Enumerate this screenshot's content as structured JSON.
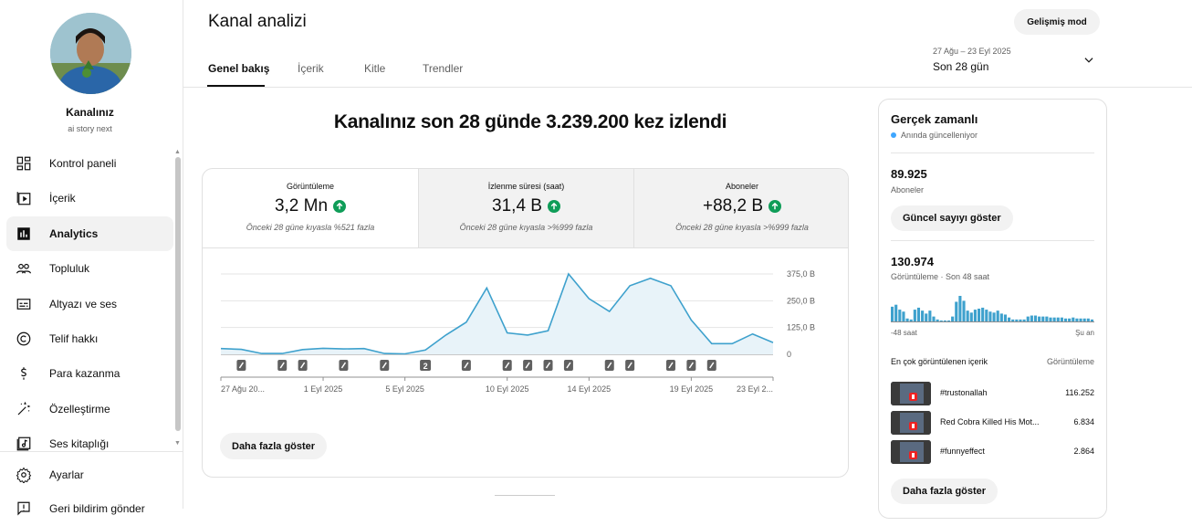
{
  "channel": {
    "name": "Kanalınız",
    "handle": "ai story next"
  },
  "sidebar": {
    "items": [
      {
        "label": "Kontrol paneli",
        "icon": "dashboard-icon"
      },
      {
        "label": "İçerik",
        "icon": "content-icon"
      },
      {
        "label": "Analytics",
        "icon": "analytics-icon",
        "active": true
      },
      {
        "label": "Topluluk",
        "icon": "community-icon"
      },
      {
        "label": "Altyazı ve ses",
        "icon": "subtitles-icon"
      },
      {
        "label": "Telif hakkı",
        "icon": "copyright-icon"
      },
      {
        "label": "Para kazanma",
        "icon": "monetization-icon"
      },
      {
        "label": "Özelleştirme",
        "icon": "customization-icon"
      },
      {
        "label": "Ses kitaplığı",
        "icon": "audio-library-icon"
      }
    ],
    "settings": "Ayarlar",
    "feedback": "Geri bildirim gönder"
  },
  "header": {
    "title": "Kanal analizi",
    "advanced_mode": "Gelişmiş mod",
    "tabs": [
      "Genel bakış",
      "İçerik",
      "Kitle",
      "Trendler"
    ],
    "date_range_sub": "27 Ağu – 23 Eyl 2025",
    "date_range": "Son 28 gün"
  },
  "main": {
    "headline": "Kanalınız son 28 günde 3.239.200 kez izlendi",
    "metrics": [
      {
        "label": "Görüntüleme",
        "value": "3,2 Mn",
        "compare": "Önceki 28 güne kıyasla %521 fazla"
      },
      {
        "label": "İzlenme süresi (saat)",
        "value": "31,4 B",
        "compare": "Önceki 28 güne kıyasla >%999 fazla"
      },
      {
        "label": "Aboneler",
        "value": "+88,2 B",
        "compare": "Önceki 28 güne kıyasla >%999 fazla"
      }
    ],
    "show_more": "Daha fazla göster"
  },
  "chart_data": {
    "type": "area",
    "x": [
      "27 Ağu",
      "28 Ağu",
      "29 Ağu",
      "30 Ağu",
      "31 Ağu",
      "1 Eyl",
      "2 Eyl",
      "3 Eyl",
      "4 Eyl",
      "5 Eyl",
      "6 Eyl",
      "7 Eyl",
      "8 Eyl",
      "9 Eyl",
      "10 Eyl",
      "11 Eyl",
      "12 Eyl",
      "13 Eyl",
      "14 Eyl",
      "15 Eyl",
      "16 Eyl",
      "17 Eyl",
      "18 Eyl",
      "19 Eyl",
      "20 Eyl",
      "21 Eyl",
      "22 Eyl",
      "23 Eyl"
    ],
    "values": [
      27,
      23,
      4,
      4,
      22,
      28,
      25,
      27,
      4,
      2,
      20,
      90,
      150,
      310,
      100,
      90,
      110,
      375,
      260,
      200,
      320,
      355,
      320,
      160,
      50,
      50,
      95,
      55
    ],
    "x_tick_labels": [
      "27 Ağu 20...",
      "1 Eyl 2025",
      "5 Eyl 2025",
      "10 Eyl 2025",
      "14 Eyl 2025",
      "19 Eyl 2025",
      "23 Eyl 2..."
    ],
    "x_tick_indices": [
      0,
      5,
      9,
      14,
      18,
      23,
      27
    ],
    "y_tick_labels": [
      "375,0 B",
      "250,0 B",
      "125,0 B",
      "0"
    ],
    "y_ticks": [
      375,
      250,
      125,
      0
    ],
    "ylim": [
      0,
      400
    ],
    "marker_indices": [
      1,
      3,
      4,
      6,
      8,
      10,
      12,
      14,
      15,
      16,
      17,
      19,
      20,
      22,
      23,
      24
    ],
    "marker_numbered": {
      "index": 10,
      "label": "2"
    },
    "line_color": "#3ea1cd",
    "fill_color": "#e8f3f9",
    "grid": true,
    "legend": "none"
  },
  "realtime": {
    "title": "Gerçek zamanlı",
    "live": "Anında güncelleniyor",
    "subs_value": "89.925",
    "subs_label": "Aboneler",
    "subs_button": "Güncel sayıyı göster",
    "views_value": "130.974",
    "views_label": "Görüntüleme · Son 48 saat",
    "axis_left": "-48 saat",
    "axis_right": "Şu an",
    "bars": [
      15,
      17,
      12,
      10,
      3,
      2,
      12,
      14,
      11,
      8,
      11,
      5,
      2,
      1,
      1,
      1,
      5,
      20,
      26,
      21,
      11,
      9,
      12,
      13,
      14,
      12,
      10,
      9,
      11,
      8,
      7,
      4,
      2,
      2,
      2,
      2,
      5,
      6,
      6,
      5,
      5,
      5,
      4,
      4,
      4,
      4,
      3,
      3,
      4,
      3,
      3,
      3,
      3,
      2
    ],
    "top_content_label": "En çok görüntülenen içerik",
    "top_views_label": "Görüntüleme",
    "top_content": [
      {
        "title": "#trustonallah",
        "views": "116.252"
      },
      {
        "title": "Red Cobra Killed His Mot...",
        "views": "6.834"
      },
      {
        "title": "#funnyeffect",
        "views": "2.864"
      }
    ],
    "show_more": "Daha fazla göster"
  }
}
